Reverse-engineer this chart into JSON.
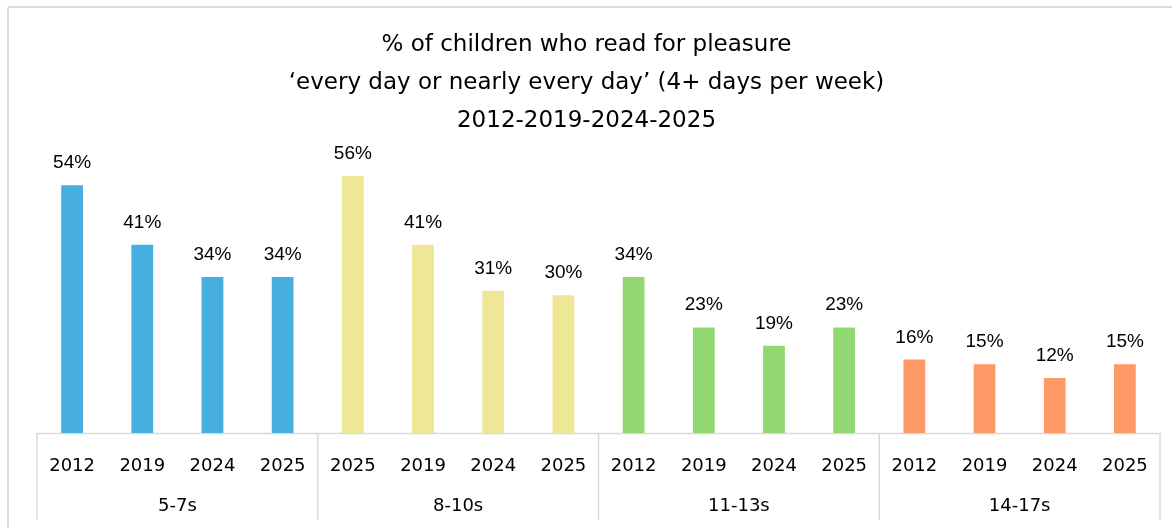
{
  "chart_data": {
    "type": "bar",
    "title": "% of children who read for pleasure\n‘every day or nearly every day’ (4+ days per week)\n2012-2019-2024-2025",
    "categories": [
      "2012",
      "2019",
      "2024",
      "2025",
      "2025",
      "2019",
      "2024",
      "2025",
      "2012",
      "2019",
      "2024",
      "2025",
      "2012",
      "2019",
      "2024",
      "2025"
    ],
    "values": [
      54,
      41,
      34,
      34,
      56,
      41,
      31,
      30,
      34,
      23,
      19,
      23,
      16,
      15,
      12,
      15
    ],
    "colors": [
      "#47afe0",
      "#47afe0",
      "#47afe0",
      "#47afe0",
      "#eee796",
      "#eee796",
      "#eee796",
      "#eee796",
      "#91d873",
      "#91d873",
      "#91d873",
      "#91d873",
      "#ff9966",
      "#ff9966",
      "#ff9966",
      "#ff9966"
    ],
    "value_labels": [
      "54%",
      "41%",
      "34%",
      "34%",
      "56%",
      "41%",
      "31%",
      "30%",
      "34%",
      "23%",
      "19%",
      "23%",
      "16%",
      "15%",
      "12%",
      "15%"
    ],
    "annotations": [
      "5-7s",
      "8-10s",
      "11-13s",
      "14-17s"
    ],
    "tick_labels": "x"
  }
}
